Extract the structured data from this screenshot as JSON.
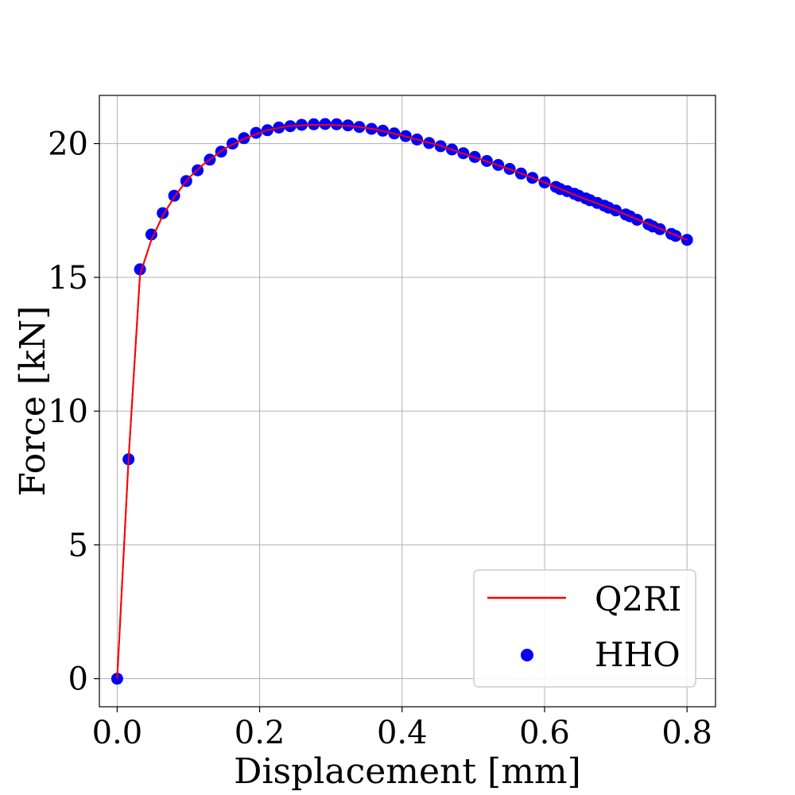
{
  "chart_data": {
    "type": "line",
    "title": "",
    "xlabel": "Displacement [mm]",
    "ylabel": "Force [kN]",
    "xlim": [
      -0.025,
      0.84
    ],
    "ylim": [
      -1.05,
      21.8
    ],
    "xticks": [
      0.0,
      0.2,
      0.4,
      0.6,
      0.8
    ],
    "xtick_labels": [
      "0.0",
      "0.2",
      "0.4",
      "0.6",
      "0.8"
    ],
    "yticks": [
      0,
      5,
      10,
      15,
      20
    ],
    "ytick_labels": [
      "0",
      "5",
      "10",
      "15",
      "20"
    ],
    "grid": true,
    "legend_position": "lower-right",
    "series": [
      {
        "name": "Q2RI",
        "style": "line",
        "color": "#ff0000",
        "x": [
          0.0,
          0.016,
          0.032,
          0.048,
          0.064,
          0.08,
          0.1,
          0.12,
          0.15,
          0.18,
          0.21,
          0.24,
          0.27,
          0.3,
          0.33,
          0.36,
          0.4,
          0.45,
          0.5,
          0.55,
          0.6,
          0.65,
          0.7,
          0.75,
          0.8
        ],
        "y": [
          0.0,
          8.2,
          15.1,
          16.4,
          17.3,
          18.0,
          18.7,
          19.2,
          19.8,
          20.2,
          20.5,
          20.65,
          20.7,
          20.7,
          20.65,
          20.55,
          20.3,
          19.95,
          19.5,
          19.05,
          18.55,
          18.0,
          17.5,
          16.95,
          16.4
        ]
      },
      {
        "name": "HHO",
        "style": "scatter",
        "color": "#0000ff",
        "x": [
          0.0,
          0.016,
          0.032,
          0.048,
          0.064,
          0.08,
          0.097,
          0.113,
          0.13,
          0.146,
          0.162,
          0.178,
          0.195,
          0.211,
          0.227,
          0.243,
          0.259,
          0.276,
          0.292,
          0.308,
          0.324,
          0.34,
          0.357,
          0.373,
          0.389,
          0.405,
          0.421,
          0.438,
          0.454,
          0.47,
          0.486,
          0.502,
          0.519,
          0.535,
          0.551,
          0.567,
          0.583,
          0.6,
          0.616,
          0.622,
          0.632,
          0.642,
          0.648,
          0.658,
          0.664,
          0.674,
          0.684,
          0.69,
          0.7,
          0.714,
          0.72,
          0.73,
          0.746,
          0.752,
          0.762,
          0.778,
          0.784,
          0.8
        ],
        "y": [
          0.0,
          8.2,
          15.3,
          16.6,
          17.4,
          18.05,
          18.6,
          19.0,
          19.4,
          19.7,
          20.0,
          20.2,
          20.4,
          20.5,
          20.6,
          20.65,
          20.7,
          20.72,
          20.73,
          20.72,
          20.68,
          20.62,
          20.55,
          20.48,
          20.38,
          20.28,
          20.15,
          20.02,
          19.9,
          19.78,
          19.64,
          19.5,
          19.35,
          19.2,
          19.05,
          18.88,
          18.72,
          18.55,
          18.38,
          18.3,
          18.22,
          18.12,
          18.05,
          17.95,
          17.88,
          17.78,
          17.68,
          17.6,
          17.5,
          17.35,
          17.28,
          17.15,
          16.98,
          16.9,
          16.8,
          16.62,
          16.55,
          16.4
        ]
      }
    ]
  }
}
